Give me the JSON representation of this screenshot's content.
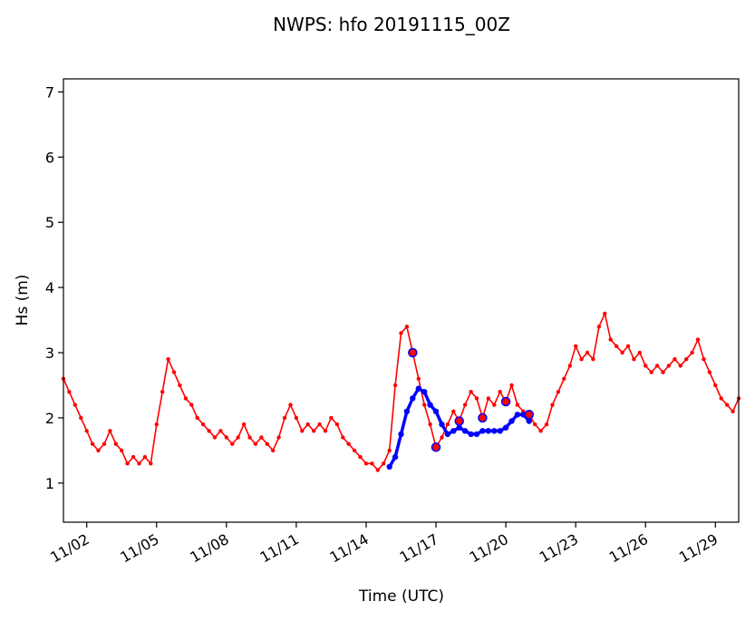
{
  "chart_data": {
    "type": "line",
    "title": "NWPS: hfo 20191115_00Z",
    "xlabel": "Time (UTC)",
    "ylabel": "Hs (m)",
    "xlim": [
      "2019-11-01",
      "2019-11-30"
    ],
    "ylim": [
      0.4,
      7.2
    ],
    "yticks": [
      1,
      2,
      3,
      4,
      5,
      6,
      7
    ],
    "xticks": [
      {
        "date": "2019-11-02",
        "label": "11/02"
      },
      {
        "date": "2019-11-05",
        "label": "11/05"
      },
      {
        "date": "2019-11-08",
        "label": "11/08"
      },
      {
        "date": "2019-11-11",
        "label": "11/11"
      },
      {
        "date": "2019-11-14",
        "label": "11/14"
      },
      {
        "date": "2019-11-17",
        "label": "11/17"
      },
      {
        "date": "2019-11-20",
        "label": "11/20"
      },
      {
        "date": "2019-11-23",
        "label": "11/23"
      },
      {
        "date": "2019-11-26",
        "label": "11/26"
      },
      {
        "date": "2019-11-29",
        "label": "11/29"
      }
    ],
    "grid": false,
    "series": [
      {
        "color": "#ff0000",
        "marker": "dot",
        "points": [
          [
            "2019-11-01 00:00",
            2.6
          ],
          [
            "2019-11-01 06:00",
            2.4
          ],
          [
            "2019-11-01 12:00",
            2.2
          ],
          [
            "2019-11-01 18:00",
            2.0
          ],
          [
            "2019-11-02 00:00",
            1.8
          ],
          [
            "2019-11-02 06:00",
            1.6
          ],
          [
            "2019-11-02 12:00",
            1.5
          ],
          [
            "2019-11-02 18:00",
            1.6
          ],
          [
            "2019-11-03 00:00",
            1.8
          ],
          [
            "2019-11-03 06:00",
            1.6
          ],
          [
            "2019-11-03 12:00",
            1.5
          ],
          [
            "2019-11-03 18:00",
            1.3
          ],
          [
            "2019-11-04 00:00",
            1.4
          ],
          [
            "2019-11-04 06:00",
            1.3
          ],
          [
            "2019-11-04 12:00",
            1.4
          ],
          [
            "2019-11-04 18:00",
            1.3
          ],
          [
            "2019-11-05 00:00",
            1.9
          ],
          [
            "2019-11-05 06:00",
            2.4
          ],
          [
            "2019-11-05 12:00",
            2.9
          ],
          [
            "2019-11-05 18:00",
            2.7
          ],
          [
            "2019-11-06 00:00",
            2.5
          ],
          [
            "2019-11-06 06:00",
            2.3
          ],
          [
            "2019-11-06 12:00",
            2.2
          ],
          [
            "2019-11-06 18:00",
            2.0
          ],
          [
            "2019-11-07 00:00",
            1.9
          ],
          [
            "2019-11-07 06:00",
            1.8
          ],
          [
            "2019-11-07 12:00",
            1.7
          ],
          [
            "2019-11-07 18:00",
            1.8
          ],
          [
            "2019-11-08 00:00",
            1.7
          ],
          [
            "2019-11-08 06:00",
            1.6
          ],
          [
            "2019-11-08 12:00",
            1.7
          ],
          [
            "2019-11-08 18:00",
            1.9
          ],
          [
            "2019-11-09 00:00",
            1.7
          ],
          [
            "2019-11-09 06:00",
            1.6
          ],
          [
            "2019-11-09 12:00",
            1.7
          ],
          [
            "2019-11-09 18:00",
            1.6
          ],
          [
            "2019-11-10 00:00",
            1.5
          ],
          [
            "2019-11-10 06:00",
            1.7
          ],
          [
            "2019-11-10 12:00",
            2.0
          ],
          [
            "2019-11-10 18:00",
            2.2
          ],
          [
            "2019-11-11 00:00",
            2.0
          ],
          [
            "2019-11-11 06:00",
            1.8
          ],
          [
            "2019-11-11 12:00",
            1.9
          ],
          [
            "2019-11-11 18:00",
            1.8
          ],
          [
            "2019-11-12 00:00",
            1.9
          ],
          [
            "2019-11-12 06:00",
            1.8
          ],
          [
            "2019-11-12 12:00",
            2.0
          ],
          [
            "2019-11-12 18:00",
            1.9
          ],
          [
            "2019-11-13 00:00",
            1.7
          ],
          [
            "2019-11-13 06:00",
            1.6
          ],
          [
            "2019-11-13 12:00",
            1.5
          ],
          [
            "2019-11-13 18:00",
            1.4
          ],
          [
            "2019-11-14 00:00",
            1.3
          ],
          [
            "2019-11-14 06:00",
            1.3
          ],
          [
            "2019-11-14 12:00",
            1.2
          ],
          [
            "2019-11-14 18:00",
            1.3
          ],
          [
            "2019-11-15 00:00",
            1.5
          ],
          [
            "2019-11-15 06:00",
            2.5
          ],
          [
            "2019-11-15 12:00",
            3.3
          ],
          [
            "2019-11-15 18:00",
            3.4
          ],
          [
            "2019-11-16 00:00",
            3.0
          ],
          [
            "2019-11-16 06:00",
            2.6
          ],
          [
            "2019-11-16 12:00",
            2.2
          ],
          [
            "2019-11-16 18:00",
            1.9
          ],
          [
            "2019-11-17 00:00",
            1.55
          ],
          [
            "2019-11-17 06:00",
            1.7
          ],
          [
            "2019-11-17 12:00",
            1.9
          ],
          [
            "2019-11-17 18:00",
            2.1
          ],
          [
            "2019-11-18 00:00",
            1.95
          ],
          [
            "2019-11-18 06:00",
            2.2
          ],
          [
            "2019-11-18 12:00",
            2.4
          ],
          [
            "2019-11-18 18:00",
            2.3
          ],
          [
            "2019-11-19 00:00",
            2.0
          ],
          [
            "2019-11-19 06:00",
            2.3
          ],
          [
            "2019-11-19 12:00",
            2.2
          ],
          [
            "2019-11-19 18:00",
            2.4
          ],
          [
            "2019-11-20 00:00",
            2.25
          ],
          [
            "2019-11-20 06:00",
            2.5
          ],
          [
            "2019-11-20 12:00",
            2.2
          ],
          [
            "2019-11-20 18:00",
            2.1
          ],
          [
            "2019-11-21 00:00",
            2.05
          ],
          [
            "2019-11-21 06:00",
            1.9
          ],
          [
            "2019-11-21 12:00",
            1.8
          ],
          [
            "2019-11-21 18:00",
            1.9
          ],
          [
            "2019-11-22 00:00",
            2.2
          ],
          [
            "2019-11-22 06:00",
            2.4
          ],
          [
            "2019-11-22 12:00",
            2.6
          ],
          [
            "2019-11-22 18:00",
            2.8
          ],
          [
            "2019-11-23 00:00",
            3.1
          ],
          [
            "2019-11-23 06:00",
            2.9
          ],
          [
            "2019-11-23 12:00",
            3.0
          ],
          [
            "2019-11-23 18:00",
            2.9
          ],
          [
            "2019-11-24 00:00",
            3.4
          ],
          [
            "2019-11-24 06:00",
            3.6
          ],
          [
            "2019-11-24 12:00",
            3.2
          ],
          [
            "2019-11-24 18:00",
            3.1
          ],
          [
            "2019-11-25 00:00",
            3.0
          ],
          [
            "2019-11-25 06:00",
            3.1
          ],
          [
            "2019-11-25 12:00",
            2.9
          ],
          [
            "2019-11-25 18:00",
            3.0
          ],
          [
            "2019-11-26 00:00",
            2.8
          ],
          [
            "2019-11-26 06:00",
            2.7
          ],
          [
            "2019-11-26 12:00",
            2.8
          ],
          [
            "2019-11-26 18:00",
            2.7
          ],
          [
            "2019-11-27 00:00",
            2.8
          ],
          [
            "2019-11-27 06:00",
            2.9
          ],
          [
            "2019-11-27 12:00",
            2.8
          ],
          [
            "2019-11-27 18:00",
            2.9
          ],
          [
            "2019-11-28 00:00",
            3.0
          ],
          [
            "2019-11-28 06:00",
            3.2
          ],
          [
            "2019-11-28 12:00",
            2.9
          ],
          [
            "2019-11-28 18:00",
            2.7
          ],
          [
            "2019-11-29 00:00",
            2.5
          ],
          [
            "2019-11-29 06:00",
            2.3
          ],
          [
            "2019-11-29 12:00",
            2.2
          ],
          [
            "2019-11-29 18:00",
            2.1
          ],
          [
            "2019-11-30 00:00",
            2.3
          ]
        ]
      },
      {
        "color": "#0000ff",
        "marker": "dot",
        "points": [
          [
            "2019-11-15 00:00",
            1.25
          ],
          [
            "2019-11-15 06:00",
            1.4
          ],
          [
            "2019-11-15 12:00",
            1.75
          ],
          [
            "2019-11-15 18:00",
            2.1
          ],
          [
            "2019-11-16 00:00",
            2.3
          ],
          [
            "2019-11-16 06:00",
            2.45
          ],
          [
            "2019-11-16 12:00",
            2.4
          ],
          [
            "2019-11-16 18:00",
            2.2
          ],
          [
            "2019-11-17 00:00",
            2.1
          ],
          [
            "2019-11-17 06:00",
            1.9
          ],
          [
            "2019-11-17 12:00",
            1.75
          ],
          [
            "2019-11-17 18:00",
            1.8
          ],
          [
            "2019-11-18 00:00",
            1.85
          ],
          [
            "2019-11-18 06:00",
            1.8
          ],
          [
            "2019-11-18 12:00",
            1.75
          ],
          [
            "2019-11-18 18:00",
            1.75
          ],
          [
            "2019-11-19 00:00",
            1.8
          ],
          [
            "2019-11-19 06:00",
            1.8
          ],
          [
            "2019-11-19 12:00",
            1.8
          ],
          [
            "2019-11-19 18:00",
            1.8
          ],
          [
            "2019-11-20 00:00",
            1.85
          ],
          [
            "2019-11-20 06:00",
            1.95
          ],
          [
            "2019-11-20 12:00",
            2.05
          ],
          [
            "2019-11-20 18:00",
            2.05
          ],
          [
            "2019-11-21 00:00",
            1.95
          ]
        ]
      }
    ],
    "observations": {
      "color": "#0000ff",
      "face": "#ff0000",
      "points": [
        [
          "2019-11-16 00:00",
          3.0
        ],
        [
          "2019-11-17 00:00",
          1.55
        ],
        [
          "2019-11-18 00:00",
          1.95
        ],
        [
          "2019-11-19 00:00",
          2.0
        ],
        [
          "2019-11-20 00:00",
          2.25
        ],
        [
          "2019-11-21 00:00",
          2.05
        ]
      ]
    }
  }
}
